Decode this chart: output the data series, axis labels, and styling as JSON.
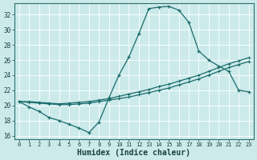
{
  "xlabel": "Humidex (Indice chaleur)",
  "bg_color": "#cceaea",
  "line_color": "#1a6b6b",
  "x_ticks": [
    0,
    1,
    2,
    3,
    4,
    5,
    6,
    7,
    8,
    9,
    10,
    11,
    12,
    13,
    14,
    15,
    16,
    17,
    18,
    19,
    20,
    21,
    22,
    23
  ],
  "y_ticks": [
    16,
    18,
    20,
    22,
    24,
    26,
    28,
    30,
    32
  ],
  "xlim": [
    -0.5,
    23.5
  ],
  "ylim": [
    15.5,
    33.5
  ],
  "line1_x": [
    0,
    1,
    2,
    3,
    4,
    5,
    6,
    7,
    8,
    9,
    10,
    11,
    12,
    13,
    14,
    15,
    16,
    17,
    18,
    19,
    20,
    21,
    22,
    23
  ],
  "line1_y": [
    20.5,
    19.8,
    19.2,
    18.4,
    18.0,
    17.5,
    17.0,
    16.4,
    17.8,
    21.0,
    24.0,
    26.4,
    29.5,
    32.8,
    33.0,
    33.1,
    32.6,
    31.0,
    27.2,
    26.0,
    25.2,
    24.5,
    22.0,
    21.8
  ],
  "line2_x": [
    0,
    1,
    2,
    3,
    4,
    5,
    6,
    7,
    8,
    9,
    10,
    11,
    12,
    13,
    14,
    15,
    16,
    17,
    18,
    19,
    20,
    21,
    22,
    23
  ],
  "line2_y": [
    20.5,
    20.4,
    20.3,
    20.2,
    20.1,
    20.1,
    20.2,
    20.3,
    20.5,
    20.7,
    20.9,
    21.1,
    21.4,
    21.7,
    22.0,
    22.3,
    22.7,
    23.1,
    23.5,
    24.0,
    24.5,
    25.0,
    25.4,
    25.8
  ],
  "line3_x": [
    0,
    1,
    2,
    3,
    4,
    5,
    6,
    7,
    8,
    9,
    10,
    11,
    12,
    13,
    14,
    15,
    16,
    17,
    18,
    19,
    20,
    21,
    22,
    23
  ],
  "line3_y": [
    20.5,
    20.5,
    20.4,
    20.3,
    20.2,
    20.3,
    20.4,
    20.5,
    20.7,
    20.9,
    21.2,
    21.5,
    21.8,
    22.1,
    22.5,
    22.8,
    23.2,
    23.6,
    24.0,
    24.5,
    25.0,
    25.5,
    25.9,
    26.3
  ]
}
